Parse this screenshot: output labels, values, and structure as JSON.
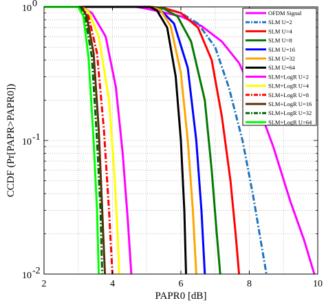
{
  "chart_data": {
    "type": "line",
    "xlabel": "PAPR0 [dB]",
    "ylabel": "CCDF (Pr[PAPR>PAPR0])",
    "xlim": [
      2,
      10
    ],
    "ylim": [
      0.01,
      1
    ],
    "yscale": "log",
    "grid": true,
    "legend_position": "top-right",
    "x_ticks": [
      {
        "v": 2,
        "label": "2"
      },
      {
        "v": 4,
        "label": "4"
      },
      {
        "v": 6,
        "label": "6"
      },
      {
        "v": 8,
        "label": "8"
      },
      {
        "v": 10,
        "label": "10"
      }
    ],
    "y_ticks": [
      {
        "v": 1,
        "base": "10",
        "exp": "0"
      },
      {
        "v": 0.1,
        "base": "10",
        "exp": "-1"
      },
      {
        "v": 0.01,
        "base": "10",
        "exp": "-2"
      }
    ],
    "series": [
      {
        "name": "OFDM Signal",
        "color": "#ff00ff",
        "dash": "solid",
        "x": [
          4.7,
          5.0,
          5.4,
          6.0,
          6.6,
          7.2,
          7.7,
          8.2,
          8.7,
          9.2,
          9.6,
          9.9
        ],
        "y": [
          1.0,
          0.97,
          0.92,
          0.85,
          0.72,
          0.55,
          0.38,
          0.2,
          0.09,
          0.035,
          0.018,
          0.01
        ]
      },
      {
        "name": "SLM U=2",
        "color": "#1e73be",
        "dash": "dashdot",
        "x": [
          5.1,
          5.5,
          6.0,
          6.5,
          7.0,
          7.4,
          7.8,
          8.1,
          8.3,
          8.5
        ],
        "y": [
          1.0,
          0.98,
          0.9,
          0.75,
          0.5,
          0.25,
          0.1,
          0.04,
          0.02,
          0.01
        ]
      },
      {
        "name": "SLM U=4",
        "color": "#ff0000",
        "dash": "solid",
        "x": [
          5.1,
          5.5,
          6.0,
          6.5,
          6.9,
          7.2,
          7.45,
          7.6,
          7.7
        ],
        "y": [
          1.0,
          0.98,
          0.9,
          0.7,
          0.4,
          0.15,
          0.05,
          0.02,
          0.01
        ]
      },
      {
        "name": "SLM U=8",
        "color": "#007a00",
        "dash": "solid",
        "x": [
          5.1,
          5.5,
          5.9,
          6.3,
          6.7,
          6.9,
          7.05,
          7.15
        ],
        "y": [
          1.0,
          0.97,
          0.85,
          0.55,
          0.2,
          0.06,
          0.02,
          0.01
        ]
      },
      {
        "name": "SLM U=16",
        "color": "#0000ff",
        "dash": "solid",
        "x": [
          5.1,
          5.4,
          5.8,
          6.2,
          6.45,
          6.6,
          6.7
        ],
        "y": [
          1.0,
          0.95,
          0.75,
          0.35,
          0.1,
          0.03,
          0.01
        ]
      },
      {
        "name": "SLM U=32",
        "color": "#ffa500",
        "dash": "solid",
        "x": [
          5.1,
          5.4,
          5.7,
          6.0,
          6.2,
          6.35,
          6.45
        ],
        "y": [
          1.0,
          0.95,
          0.72,
          0.32,
          0.1,
          0.03,
          0.01
        ]
      },
      {
        "name": "SLM U=64",
        "color": "#000000",
        "dash": "solid",
        "x": [
          5.1,
          5.3,
          5.6,
          5.85,
          6.0,
          6.1,
          6.15
        ],
        "y": [
          1.0,
          0.94,
          0.7,
          0.3,
          0.1,
          0.03,
          0.01
        ]
      },
      {
        "name": "SLM+LogR U=2",
        "color": "#ff00ff",
        "dash": "solid",
        "x": [
          3.1,
          3.4,
          3.8,
          4.1,
          4.3,
          4.45,
          4.55
        ],
        "y": [
          1.0,
          0.9,
          0.6,
          0.25,
          0.08,
          0.025,
          0.01
        ]
      },
      {
        "name": "SLM+LogR U=4",
        "color": "#ffff00",
        "dash": "solid",
        "x": [
          3.1,
          3.3,
          3.6,
          3.9,
          4.05,
          4.15,
          4.2
        ],
        "y": [
          1.0,
          0.92,
          0.6,
          0.2,
          0.06,
          0.02,
          0.01
        ]
      },
      {
        "name": "SLM+LogR U=8",
        "color": "#ff0000",
        "dash": "dashdot",
        "x": [
          3.1,
          3.3,
          3.55,
          3.75,
          3.9,
          4.0
        ],
        "y": [
          1.0,
          0.85,
          0.45,
          0.12,
          0.03,
          0.01
        ]
      },
      {
        "name": "SLM+LogR U=16",
        "color": "#5a2e0c",
        "dash": "solid",
        "x": [
          3.1,
          3.25,
          3.45,
          3.6,
          3.7,
          3.78
        ],
        "y": [
          1.0,
          0.85,
          0.45,
          0.12,
          0.03,
          0.01
        ]
      },
      {
        "name": "SLM+LogR U=32",
        "color": "#006400",
        "dash": "dashdot",
        "x": [
          3.05,
          3.2,
          3.4,
          3.55,
          3.65,
          3.7
        ],
        "y": [
          1.0,
          0.85,
          0.42,
          0.1,
          0.03,
          0.01
        ]
      },
      {
        "name": "SLM+LogR U=64",
        "color": "#00ff00",
        "dash": "solid",
        "x": [
          3.0,
          3.15,
          3.3,
          3.45,
          3.55,
          3.6
        ],
        "y": [
          1.0,
          0.85,
          0.42,
          0.1,
          0.03,
          0.01
        ]
      }
    ]
  }
}
